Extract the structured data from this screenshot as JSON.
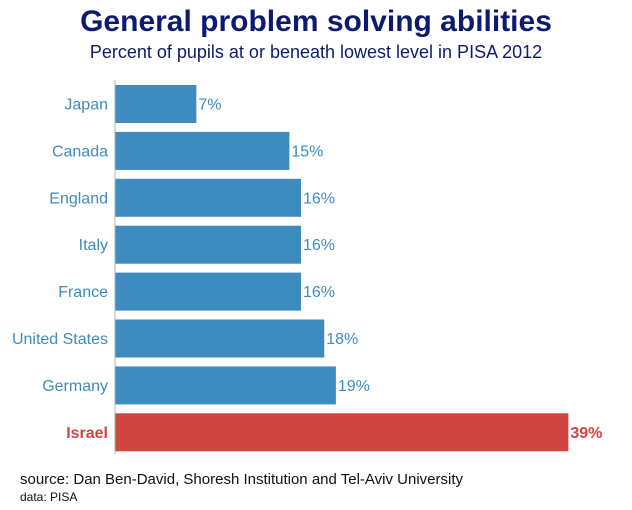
{
  "chart_data": {
    "type": "bar",
    "orientation": "horizontal",
    "title": "General problem solving abilities",
    "subtitle": "Percent of pupils at or beneath lowest level in PISA 2012",
    "categories": [
      "Japan",
      "Canada",
      "England",
      "Italy",
      "France",
      "United States",
      "Germany",
      "Israel"
    ],
    "values": [
      7,
      15,
      16,
      16,
      16,
      18,
      19,
      39
    ],
    "data_labels": [
      "7%",
      "15%",
      "16%",
      "16%",
      "16%",
      "18%",
      "19%",
      "39%"
    ],
    "xlim": [
      0,
      40
    ],
    "grid": false,
    "legend": "none",
    "colors": {
      "default_bar": "#3d8bbf",
      "highlight_bar": "#d0453f",
      "default_label": "#3d8bbf",
      "highlight_label": "#d0453f",
      "axis": "#b0b0b0"
    },
    "highlight_category": "Israel"
  },
  "footer": {
    "source": "source: Dan Ben-David, Shoresh Institution and Tel-Aviv University",
    "data": "data: PISA"
  }
}
